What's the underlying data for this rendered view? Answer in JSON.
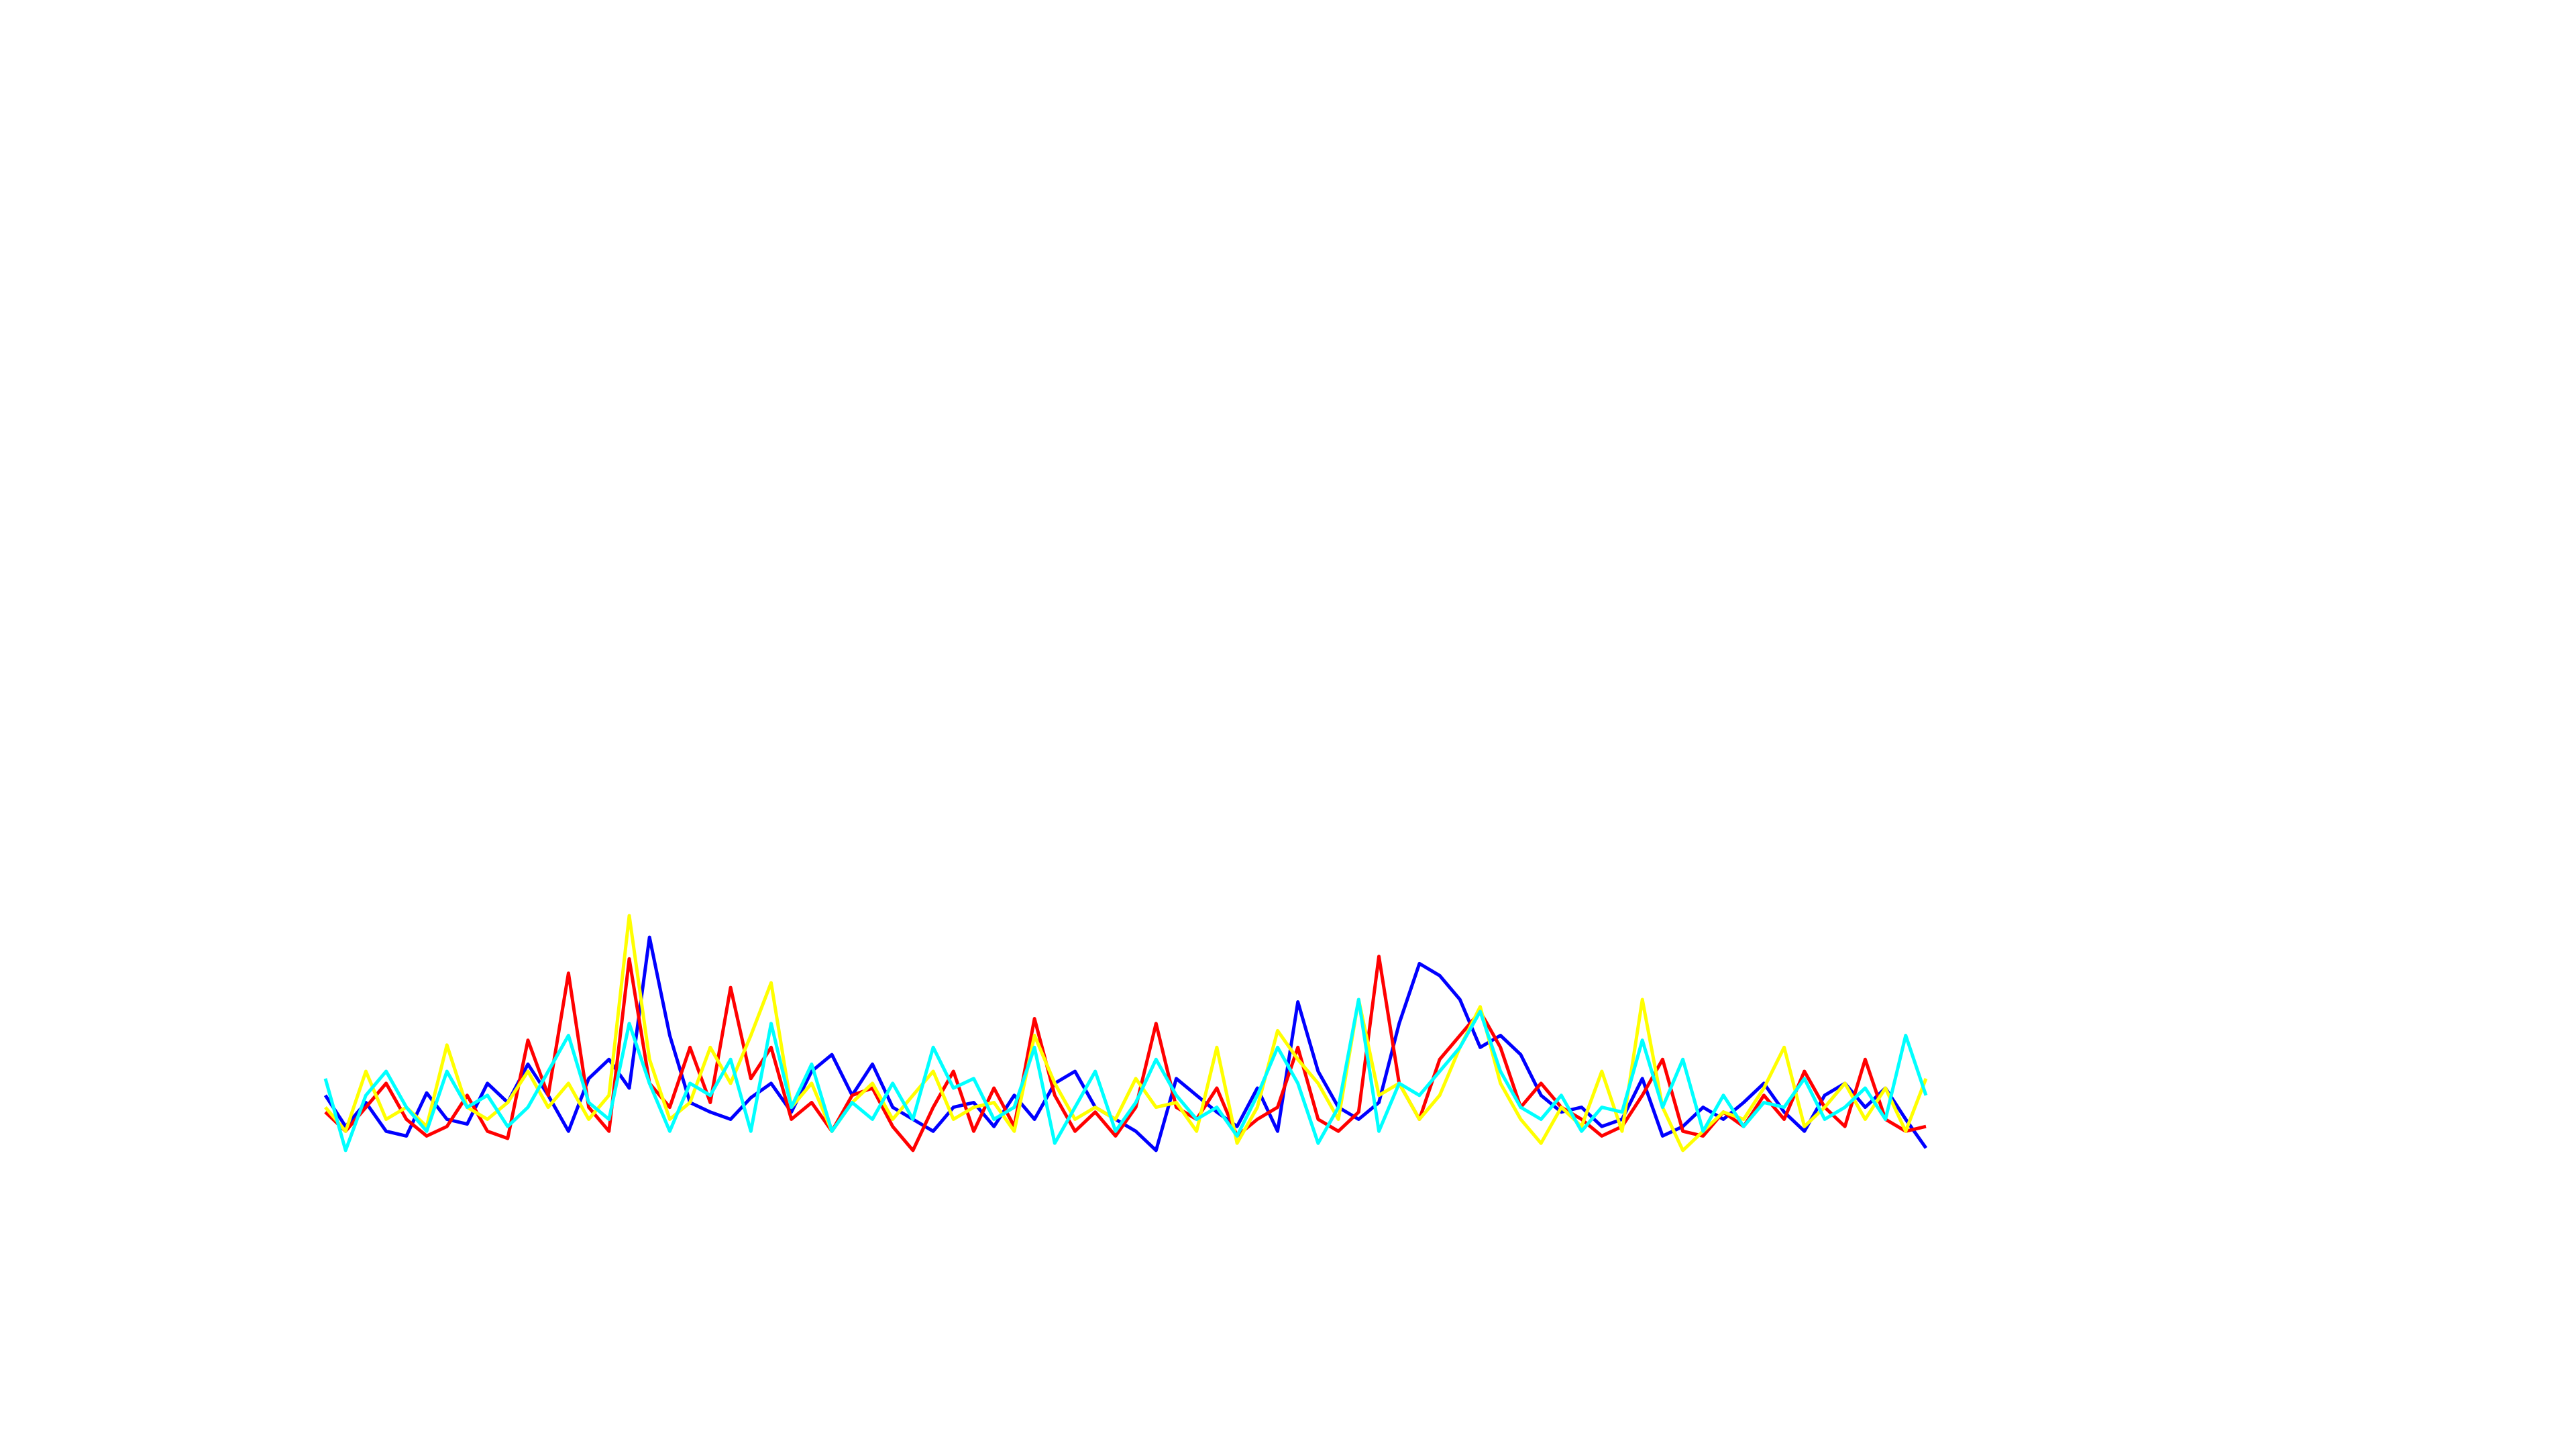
{
  "chart_data": {
    "type": "line",
    "ylim": [
      0,
      10
    ],
    "grid": false,
    "series": [
      {
        "name": "blue",
        "color": "#0000ff",
        "values": [
          2.5,
          1.2,
          2.2,
          1.0,
          0.8,
          2.6,
          1.5,
          1.3,
          3.0,
          2.2,
          3.8,
          2.5,
          1.0,
          3.2,
          4.0,
          2.8,
          9.1,
          5.0,
          2.2,
          1.8,
          1.5,
          2.4,
          3.0,
          1.8,
          3.5,
          4.2,
          2.5,
          3.8,
          2.0,
          1.5,
          1.0,
          2.0,
          2.2,
          1.2,
          2.5,
          1.5,
          3.0,
          3.5,
          2.0,
          1.5,
          1.0,
          0.2,
          3.2,
          2.5,
          1.8,
          1.2,
          2.8,
          1.0,
          6.4,
          3.5,
          2.0,
          1.5,
          2.2,
          5.5,
          8.0,
          7.5,
          6.5,
          4.5,
          5.0,
          4.2,
          2.5,
          1.8,
          2.0,
          1.2,
          1.5,
          3.2,
          0.8,
          1.2,
          2.0,
          1.5,
          2.2,
          3.0,
          1.8,
          1.0,
          2.5,
          3.0,
          2.0,
          2.8,
          1.5,
          0.3
        ]
      },
      {
        "name": "red",
        "color": "#ff0000",
        "values": [
          1.8,
          1.0,
          2.0,
          3.0,
          1.5,
          0.8,
          1.2,
          2.5,
          1.0,
          0.7,
          4.8,
          2.5,
          7.6,
          2.0,
          1.0,
          8.2,
          3.0,
          2.0,
          4.5,
          2.2,
          7.0,
          3.2,
          4.5,
          1.5,
          2.2,
          1.0,
          2.5,
          2.8,
          1.2,
          0.2,
          2.0,
          3.5,
          1.0,
          2.8,
          1.2,
          5.7,
          2.5,
          1.0,
          1.8,
          0.8,
          2.0,
          5.5,
          2.0,
          1.5,
          2.8,
          0.8,
          1.5,
          2.0,
          4.5,
          1.5,
          1.0,
          1.8,
          8.3,
          3.0,
          1.5,
          4.0,
          5.0,
          6.0,
          4.5,
          2.0,
          3.0,
          2.0,
          1.5,
          0.8,
          1.2,
          2.5,
          4.0,
          1.0,
          0.8,
          1.8,
          1.2,
          2.5,
          1.5,
          3.5,
          2.0,
          1.2,
          4.0,
          1.5,
          1.0,
          1.2
        ]
      },
      {
        "name": "yellow",
        "color": "#ffff00",
        "values": [
          2.0,
          1.0,
          3.5,
          1.5,
          2.0,
          1.2,
          4.6,
          2.0,
          1.5,
          2.2,
          3.5,
          2.0,
          3.0,
          1.5,
          2.5,
          10.0,
          4.0,
          1.5,
          2.2,
          4.5,
          3.0,
          5.0,
          7.2,
          2.0,
          3.0,
          1.0,
          2.2,
          3.0,
          1.5,
          2.5,
          3.5,
          1.5,
          2.0,
          2.2,
          1.0,
          5.0,
          3.0,
          1.5,
          2.0,
          1.5,
          3.2,
          2.0,
          2.2,
          1.0,
          4.5,
          0.5,
          2.0,
          5.2,
          4.0,
          3.0,
          1.5,
          6.5,
          2.5,
          3.0,
          1.5,
          2.5,
          4.5,
          6.2,
          3.0,
          1.5,
          0.5,
          2.0,
          1.2,
          3.5,
          1.0,
          6.5,
          2.0,
          0.2,
          1.0,
          1.8,
          1.5,
          2.8,
          4.5,
          1.2,
          2.0,
          3.0,
          1.5,
          2.8,
          1.0,
          3.2
        ]
      },
      {
        "name": "cyan",
        "color": "#00ffff",
        "values": [
          3.2,
          0.2,
          2.5,
          3.5,
          2.0,
          1.0,
          3.5,
          2.0,
          2.5,
          1.2,
          2.0,
          3.5,
          5.0,
          2.2,
          1.5,
          5.5,
          3.0,
          1.0,
          3.0,
          2.5,
          4.0,
          1.0,
          5.5,
          2.0,
          3.8,
          1.0,
          2.2,
          1.5,
          3.0,
          1.5,
          4.5,
          2.8,
          3.2,
          1.5,
          2.0,
          4.5,
          0.5,
          2.0,
          3.5,
          1.0,
          2.2,
          4.0,
          2.5,
          1.5,
          2.0,
          0.8,
          2.5,
          4.5,
          3.0,
          0.5,
          2.0,
          6.5,
          1.0,
          3.0,
          2.5,
          3.5,
          4.5,
          6.0,
          3.5,
          2.0,
          1.5,
          2.5,
          1.0,
          2.0,
          1.8,
          4.8,
          2.0,
          4.0,
          1.0,
          2.5,
          1.2,
          2.2,
          2.0,
          3.2,
          1.5,
          2.0,
          2.8,
          1.5,
          5.0,
          2.5
        ]
      }
    ]
  }
}
